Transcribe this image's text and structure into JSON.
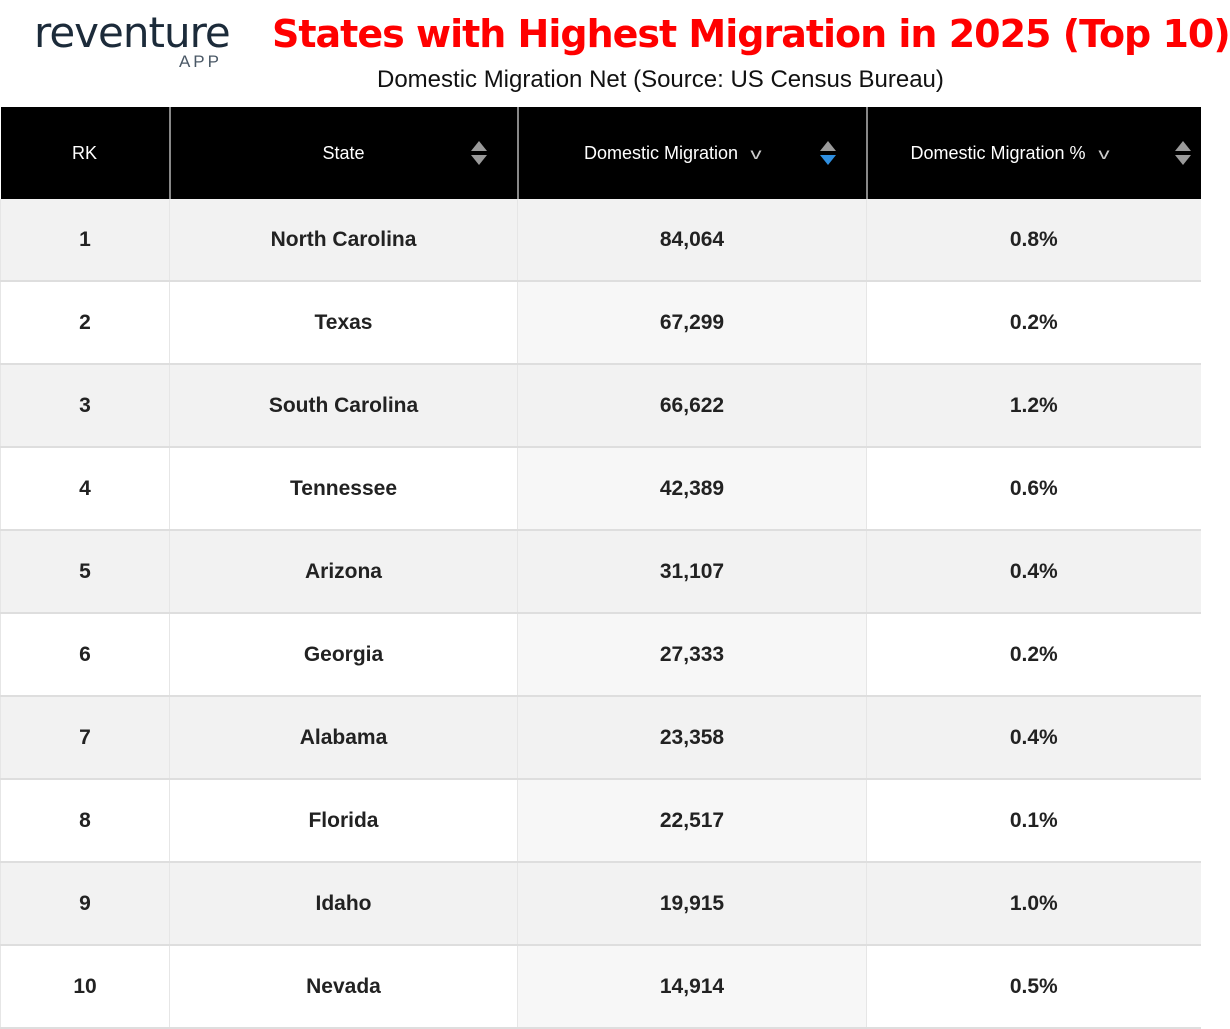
{
  "logo": {
    "word": "reventure",
    "sub": "APP"
  },
  "title": "States with Highest Migration in 2025 (Top 10)",
  "subtitle": "Domestic Migration Net (Source: US Census Bureau)",
  "colors": {
    "title": "#ff0000",
    "header_bg": "#000000",
    "sort_active": "#2f8fe0",
    "sort_inactive": "#9a9a9a"
  },
  "chart_data": {
    "type": "table",
    "columns": [
      "RK",
      "State",
      "Domestic Migration",
      "Domestic Migration %"
    ],
    "sorted_by": "Domestic Migration (descending)",
    "rows": [
      [
        "1",
        "North Carolina",
        "84,064",
        "0.8%"
      ],
      [
        "2",
        "Texas",
        "67,299",
        "0.2%"
      ],
      [
        "3",
        "South Carolina",
        "66,622",
        "1.2%"
      ],
      [
        "4",
        "Tennessee",
        "42,389",
        "0.6%"
      ],
      [
        "5",
        "Arizona",
        "31,107",
        "0.4%"
      ],
      [
        "6",
        "Georgia",
        "27,333",
        "0.2%"
      ],
      [
        "7",
        "Alabama",
        "23,358",
        "0.4%"
      ],
      [
        "8",
        "Florida",
        "22,517",
        "0.1%"
      ],
      [
        "9",
        "Idaho",
        "19,915",
        "1.0%"
      ],
      [
        "10",
        "Nevada",
        "14,914",
        "0.5%"
      ]
    ]
  }
}
